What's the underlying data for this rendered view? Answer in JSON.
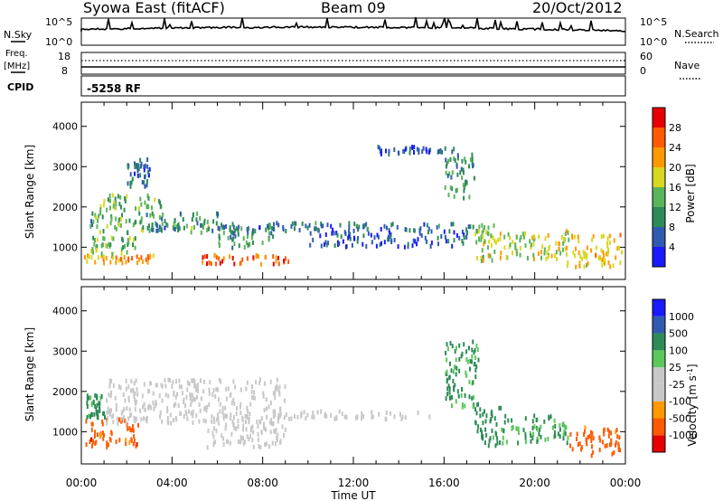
{
  "header": {
    "station": "Syowa East (fitACF)",
    "beam": "Beam 09",
    "date": "20/Oct/2012"
  },
  "panels": {
    "nsky": {
      "label": "N.Sky",
      "right_label": "N.Search",
      "left_ticks": [
        "10^5",
        "10^0"
      ],
      "right_ticks": [
        "10^5",
        "10^0"
      ]
    },
    "freq": {
      "label_top": "Freq.",
      "label_bottom": "[MHz]",
      "right_label": "Nave",
      "left_ticks": [
        "18",
        "8"
      ],
      "right_ticks": [
        "60",
        "0"
      ]
    },
    "cpid": {
      "label": "CPID",
      "value": "-5258 RF"
    }
  },
  "colors": {
    "power": [
      "#1a1aff",
      "#2f5cb0",
      "#2e8b57",
      "#5ab45a",
      "#d8d820",
      "#ff9a00",
      "#ff5a00",
      "#e60000"
    ],
    "velocity": [
      "#e60000",
      "#ff5a00",
      "#ff9a00",
      "#c8c8c8",
      "#c8c8c8",
      "#5ac85a",
      "#2e8b57",
      "#2f5cb0",
      "#1a1aff"
    ],
    "gray_scatter": "#bebebe"
  },
  "chart_data": [
    {
      "type": "heatmap",
      "name": "power",
      "ylabel": "Slant Range [km]",
      "y_ticks": [
        "1000",
        "2000",
        "3000",
        "4000"
      ],
      "ylim": [
        200,
        4600
      ],
      "colorbar_label": "Power [dB]",
      "colorbar_ticks": [
        "4",
        "8",
        "12",
        "16",
        "20",
        "24",
        "28"
      ],
      "colorbar_range": [
        0,
        32
      ],
      "x_ticks": [
        "00:00",
        "04:00",
        "08:00",
        "12:00",
        "16:00",
        "20:00",
        "00:00"
      ],
      "xlim_hours": [
        0,
        24
      ],
      "regions": [
        {
          "t": [
            0.1,
            3.2
          ],
          "r": [
            600,
            800
          ],
          "power": 22
        },
        {
          "t": [
            0.4,
            2.4
          ],
          "r": [
            820,
            1250
          ],
          "power": 14
        },
        {
          "t": [
            0.2,
            6.0
          ],
          "r": [
            1350,
            1850
          ],
          "power": 12
        },
        {
          "t": [
            0.8,
            3.5
          ],
          "r": [
            1900,
            2300
          ],
          "power": 13
        },
        {
          "t": [
            5.3,
            9.3
          ],
          "r": [
            570,
            800
          ],
          "power": 25
        },
        {
          "t": [
            6.0,
            8.5
          ],
          "r": [
            900,
            1500
          ],
          "power": 11
        },
        {
          "t": [
            2.0,
            17.5
          ],
          "r": [
            1400,
            1600
          ],
          "power": 8
        },
        {
          "t": [
            10.0,
            17.0
          ],
          "r": [
            1000,
            1400
          ],
          "power": 6
        },
        {
          "t": [
            13.0,
            16.5
          ],
          "r": [
            3300,
            3500
          ],
          "power": 5
        },
        {
          "t": [
            16.0,
            17.3
          ],
          "r": [
            2200,
            3300
          ],
          "power": 11
        },
        {
          "t": [
            17.3,
            18.2
          ],
          "r": [
            600,
            1600
          ],
          "power": 16
        },
        {
          "t": [
            18.2,
            21.5
          ],
          "r": [
            700,
            1400
          ],
          "power": 17
        },
        {
          "t": [
            21.3,
            23.8
          ],
          "r": [
            500,
            1300
          ],
          "power": 20
        },
        {
          "t": [
            2.0,
            3.0
          ],
          "r": [
            2500,
            3200
          ],
          "power": 7
        }
      ]
    },
    {
      "type": "heatmap",
      "name": "velocity",
      "ylabel": "Slant Range [km]",
      "y_ticks": [
        "1000",
        "2000",
        "3000",
        "4000"
      ],
      "ylim": [
        200,
        4600
      ],
      "colorbar_label": "Velocity",
      "colorbar_unit": "[m s",
      "colorbar_unit_exp": "-1",
      "colorbar_unit_close": "]",
      "colorbar_ticks": [
        "1000",
        "500",
        "100",
        "25",
        "-25",
        "-100",
        "-500",
        "-1000"
      ],
      "x_ticks": [
        "00:00",
        "04:00",
        "08:00",
        "12:00",
        "16:00",
        "20:00",
        "00:00"
      ],
      "xlabel": "Time UT",
      "xlim_hours": [
        0,
        24
      ],
      "regions": [
        {
          "t": [
            0.1,
            2.5
          ],
          "r": [
            600,
            1300
          ],
          "velocity": -300
        },
        {
          "t": [
            0.2,
            1.0
          ],
          "r": [
            1300,
            1900
          ],
          "velocity": 200
        },
        {
          "t": [
            1.0,
            9.0
          ],
          "r": [
            1200,
            2300
          ],
          "velocity": 0
        },
        {
          "t": [
            5.5,
            9.0
          ],
          "r": [
            600,
            1200
          ],
          "velocity": 0
        },
        {
          "t": [
            9.0,
            16.0
          ],
          "r": [
            1300,
            1500
          ],
          "velocity": 0
        },
        {
          "t": [
            16.0,
            17.5
          ],
          "r": [
            1600,
            3300
          ],
          "velocity": 150
        },
        {
          "t": [
            17.3,
            18.5
          ],
          "r": [
            600,
            1600
          ],
          "velocity": 300
        },
        {
          "t": [
            18.5,
            21.5
          ],
          "r": [
            700,
            1400
          ],
          "velocity": 120
        },
        {
          "t": [
            21.5,
            23.8
          ],
          "r": [
            400,
            1100
          ],
          "velocity": -200
        }
      ]
    }
  ]
}
